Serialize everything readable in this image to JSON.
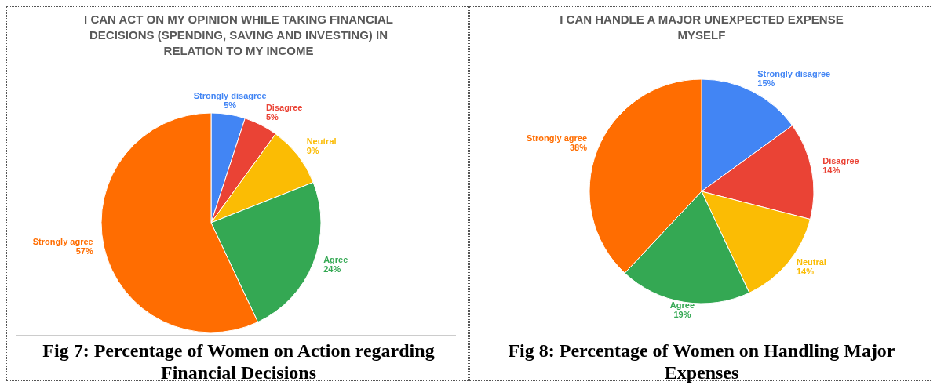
{
  "chart_data": [
    {
      "type": "pie",
      "title": "I CAN ACT ON MY OPINION WHILE TAKING FINANCIAL DECISIONS (SPENDING, SAVING AND INVESTING) IN RELATION TO MY INCOME",
      "categories": [
        "Strongly disagree",
        "Disagree",
        "Neutral",
        "Agree",
        "Strongly agree"
      ],
      "values": [
        5,
        5,
        9,
        24,
        57
      ],
      "value_labels": [
        "5%",
        "5%",
        "9%",
        "24%",
        "57%"
      ],
      "colors": [
        "#4285f4",
        "#ea4335",
        "#fbbc04",
        "#34a853",
        "#ff6d01"
      ],
      "legend": false,
      "annotations": [
        "Fig 7: Percentage of Women on Action regarding Financial Decisions"
      ]
    },
    {
      "type": "pie",
      "title": "I CAN HANDLE A MAJOR UNEXPECTED EXPENSE MYSELF",
      "categories": [
        "Strongly disagree",
        "Disagree",
        "Neutral",
        "Agree",
        "Strongly agree"
      ],
      "values": [
        15,
        14,
        14,
        19,
        38
      ],
      "value_labels": [
        "15%",
        "14%",
        "14%",
        "19%",
        "38%"
      ],
      "colors": [
        "#4285f4",
        "#ea4335",
        "#fbbc04",
        "#34a853",
        "#ff6d01"
      ],
      "legend": false,
      "annotations": [
        "Fig 8: Percentage of Women on Handling Major Expenses"
      ]
    }
  ]
}
